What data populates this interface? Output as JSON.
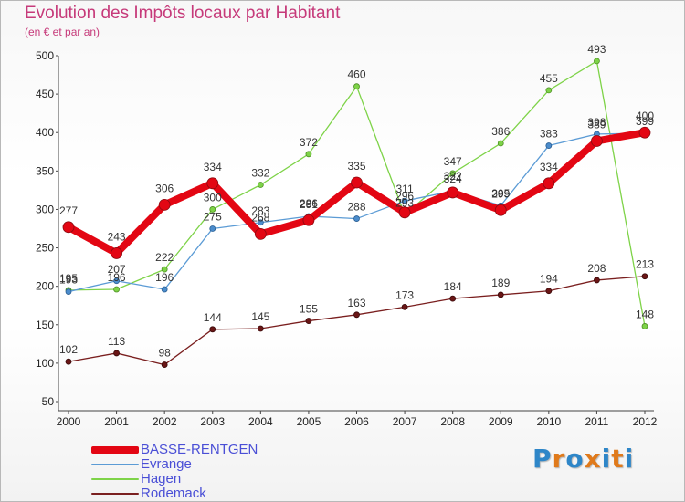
{
  "header": {
    "title": "Evolution des Impôts locaux par Habitant",
    "subtitle": "(en € et par an)"
  },
  "logo": {
    "text": "Proxiti",
    "colors": [
      "#2e86c8",
      "#e07a1b",
      "#2e86c8",
      "#e07a1b",
      "#2e86c8",
      "#e07a1b",
      "#2e86c8"
    ]
  },
  "chart_data": {
    "type": "line",
    "title": "Evolution des Impôts locaux par Habitant",
    "subtitle": "(en € et par an)",
    "xlabel": "",
    "ylabel": "",
    "x": [
      "2000",
      "2001",
      "2002",
      "2003",
      "2004",
      "2005",
      "2006",
      "2007",
      "2008",
      "2009",
      "2010",
      "2011",
      "2012"
    ],
    "ylim": [
      50,
      500
    ],
    "yticks": [
      50,
      100,
      150,
      200,
      250,
      300,
      350,
      400,
      450,
      500
    ],
    "grid": false,
    "legend_position": "bottom-left",
    "series": [
      {
        "name": "BASSE-RENTGEN",
        "color": "#e30613",
        "values": [
          277,
          243,
          306,
          334,
          268,
          286,
          335,
          296,
          322,
          299,
          334,
          389,
          400
        ],
        "labels": [
          "277",
          "243",
          "306",
          "334",
          "268",
          "286",
          "335",
          "296",
          "322",
          "299",
          "334",
          "389",
          "400"
        ]
      },
      {
        "name": "Evrange",
        "color": "#5b9bd5",
        "values": [
          193,
          207,
          196,
          275,
          283,
          291,
          288,
          311,
          324,
          305,
          383,
          398,
          399
        ],
        "labels": [
          "193",
          "207",
          "196",
          "275",
          "283",
          "291",
          "288",
          "311",
          "324",
          "305",
          "383",
          "398",
          "399"
        ]
      },
      {
        "name": "Hagen",
        "color": "#7ed348",
        "values": [
          195,
          196,
          222,
          300,
          332,
          372,
          460,
          293,
          347,
          386,
          455,
          493,
          148
        ],
        "labels": [
          "195",
          "196",
          "222",
          "300",
          "332",
          "372",
          "460",
          "293",
          "347",
          "386",
          "455",
          "493",
          "148"
        ]
      },
      {
        "name": "Rodemack",
        "color": "#7a1f1f",
        "values": [
          102,
          113,
          98,
          144,
          145,
          155,
          163,
          173,
          184,
          189,
          194,
          208,
          213
        ],
        "labels": [
          "102",
          "113",
          "98",
          "144",
          "145",
          "155",
          "163",
          "173",
          "184",
          "189",
          "194",
          "208",
          "213"
        ]
      }
    ]
  }
}
